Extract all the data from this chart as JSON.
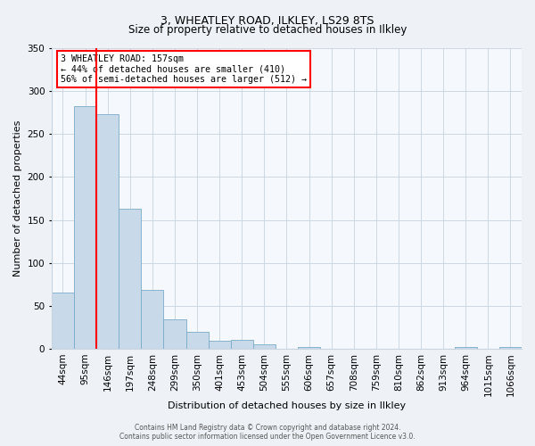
{
  "title": "3, WHEATLEY ROAD, ILKLEY, LS29 8TS",
  "subtitle": "Size of property relative to detached houses in Ilkley",
  "xlabel": "Distribution of detached houses by size in Ilkley",
  "ylabel": "Number of detached properties",
  "bin_labels": [
    "44sqm",
    "95sqm",
    "146sqm",
    "197sqm",
    "248sqm",
    "299sqm",
    "350sqm",
    "401sqm",
    "453sqm",
    "504sqm",
    "555sqm",
    "606sqm",
    "657sqm",
    "708sqm",
    "759sqm",
    "810sqm",
    "862sqm",
    "913sqm",
    "964sqm",
    "1015sqm",
    "1066sqm"
  ],
  "bar_values": [
    65,
    282,
    273,
    163,
    68,
    34,
    20,
    9,
    10,
    5,
    0,
    2,
    0,
    0,
    0,
    0,
    0,
    0,
    2,
    0,
    2
  ],
  "bar_color": "#c8d9ea",
  "bar_edge_color": "#7aaac8",
  "red_line_index": 2,
  "annotation_line1": "3 WHEATLEY ROAD: 157sqm",
  "annotation_line2": "← 44% of detached houses are smaller (410)",
  "annotation_line3": "56% of semi-detached houses are larger (512) →",
  "annotation_box_color": "white",
  "annotation_box_edge": "red",
  "ylim": [
    0,
    350
  ],
  "yticks": [
    0,
    50,
    100,
    150,
    200,
    250,
    300,
    350
  ],
  "footer_line1": "Contains HM Land Registry data © Crown copyright and database right 2024.",
  "footer_line2": "Contains public sector information licensed under the Open Government Licence v3.0.",
  "bg_color": "#eef2f7",
  "plot_bg_color": "#f5f8fc",
  "grid_color": "#c8d4e0",
  "title_fontsize": 9,
  "subtitle_fontsize": 8.5,
  "xlabel_fontsize": 8,
  "ylabel_fontsize": 8,
  "tick_fontsize": 7.5,
  "footer_fontsize": 5.5
}
